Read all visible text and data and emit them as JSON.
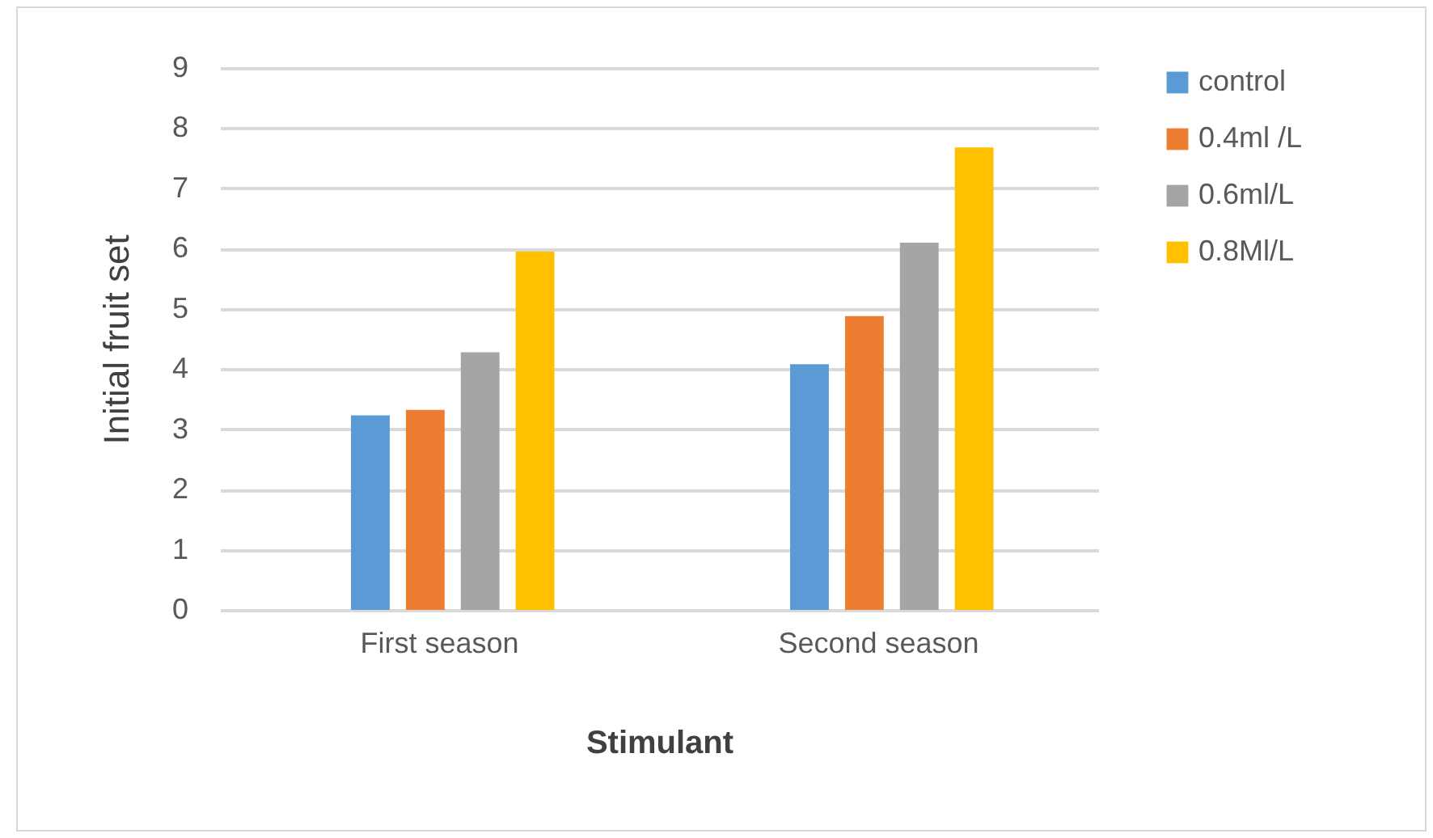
{
  "chart_data": {
    "type": "bar",
    "xlabel": "Stimulant",
    "ylabel": "Initial fruit set",
    "categories": [
      "First season",
      "Second season"
    ],
    "series": [
      {
        "name": "control",
        "color": "#5b9bd5",
        "values": [
          3.23,
          4.08
        ]
      },
      {
        "name": "0.4ml /L",
        "color": "#ed7d31",
        "values": [
          3.32,
          4.88
        ]
      },
      {
        "name": "0.6ml/L",
        "color": "#a5a5a5",
        "values": [
          4.28,
          6.1
        ]
      },
      {
        "name": "0.8Ml/L",
        "color": "#ffc000",
        "values": [
          5.95,
          7.68
        ]
      }
    ],
    "ylim": [
      0,
      9
    ],
    "yticks": [
      0,
      1,
      2,
      3,
      4,
      5,
      6,
      7,
      8,
      9
    ],
    "grid": "y",
    "legend": "right"
  }
}
